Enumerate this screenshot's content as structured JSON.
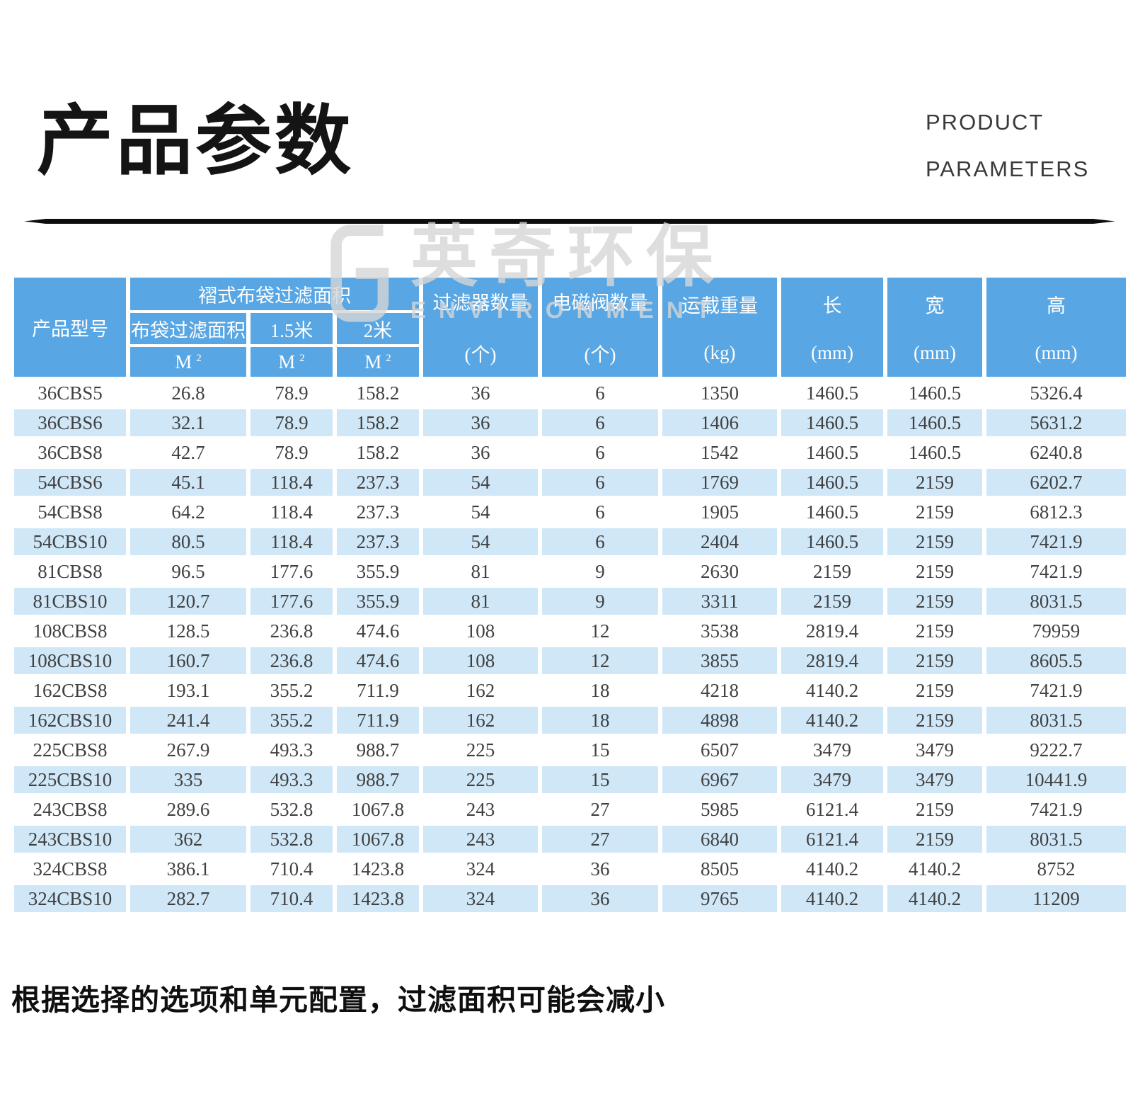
{
  "page": {
    "title": "产品参数",
    "subtitle_line1": "PRODUCT",
    "subtitle_line2": "PARAMETERS",
    "note": "根据选择的选项和单元配置，过滤面积可能会减小"
  },
  "watermark": {
    "cn": "英奇环保",
    "en": "ENVIRONMENT"
  },
  "colors": {
    "header_blue": "#58a6e3",
    "row_alt_blue": "#cfe7f7",
    "body_text": "#404040"
  },
  "table": {
    "headers": {
      "model": "产品型号",
      "pleated_group": "褶式布袋过滤面积",
      "bag_area": "布袋过滤面积",
      "len_1_5m": "1.5米",
      "len_2m": "2米",
      "unit_m": "M",
      "unit_sup": "2",
      "filter_count": "过滤器数量",
      "filter_count_unit": "(个)",
      "valve_count": "电磁阀数量",
      "valve_count_unit": "(个)",
      "weight": "运载重量",
      "weight_unit": "(kg)",
      "length": "长",
      "length_unit": "(mm)",
      "width": "宽",
      "width_unit": "(mm)",
      "height": "高",
      "height_unit": "(mm)"
    },
    "rows": [
      [
        "36CBS5",
        "26.8",
        "78.9",
        "158.2",
        "36",
        "6",
        "1350",
        "1460.5",
        "1460.5",
        "5326.4"
      ],
      [
        "36CBS6",
        "32.1",
        "78.9",
        "158.2",
        "36",
        "6",
        "1406",
        "1460.5",
        "1460.5",
        "5631.2"
      ],
      [
        "36CBS8",
        "42.7",
        "78.9",
        "158.2",
        "36",
        "6",
        "1542",
        "1460.5",
        "1460.5",
        "6240.8"
      ],
      [
        "54CBS6",
        "45.1",
        "118.4",
        "237.3",
        "54",
        "6",
        "1769",
        "1460.5",
        "2159",
        "6202.7"
      ],
      [
        "54CBS8",
        "64.2",
        "118.4",
        "237.3",
        "54",
        "6",
        "1905",
        "1460.5",
        "2159",
        "6812.3"
      ],
      [
        "54CBS10",
        "80.5",
        "118.4",
        "237.3",
        "54",
        "6",
        "2404",
        "1460.5",
        "2159",
        "7421.9"
      ],
      [
        "81CBS8",
        "96.5",
        "177.6",
        "355.9",
        "81",
        "9",
        "2630",
        "2159",
        "2159",
        "7421.9"
      ],
      [
        "81CBS10",
        "120.7",
        "177.6",
        "355.9",
        "81",
        "9",
        "3311",
        "2159",
        "2159",
        "8031.5"
      ],
      [
        "108CBS8",
        "128.5",
        "236.8",
        "474.6",
        "108",
        "12",
        "3538",
        "2819.4",
        "2159",
        "79959"
      ],
      [
        "108CBS10",
        "160.7",
        "236.8",
        "474.6",
        "108",
        "12",
        "3855",
        "2819.4",
        "2159",
        "8605.5"
      ],
      [
        "162CBS8",
        "193.1",
        "355.2",
        "711.9",
        "162",
        "18",
        "4218",
        "4140.2",
        "2159",
        "7421.9"
      ],
      [
        "162CBS10",
        "241.4",
        "355.2",
        "711.9",
        "162",
        "18",
        "4898",
        "4140.2",
        "2159",
        "8031.5"
      ],
      [
        "225CBS8",
        "267.9",
        "493.3",
        "988.7",
        "225",
        "15",
        "6507",
        "3479",
        "3479",
        "9222.7"
      ],
      [
        "225CBS10",
        "335",
        "493.3",
        "988.7",
        "225",
        "15",
        "6967",
        "3479",
        "3479",
        "10441.9"
      ],
      [
        "243CBS8",
        "289.6",
        "532.8",
        "1067.8",
        "243",
        "27",
        "5985",
        "6121.4",
        "2159",
        "7421.9"
      ],
      [
        "243CBS10",
        "362",
        "532.8",
        "1067.8",
        "243",
        "27",
        "6840",
        "6121.4",
        "2159",
        "8031.5"
      ],
      [
        "324CBS8",
        "386.1",
        "710.4",
        "1423.8",
        "324",
        "36",
        "8505",
        "4140.2",
        "4140.2",
        "8752"
      ],
      [
        "324CBS10",
        "282.7",
        "710.4",
        "1423.8",
        "324",
        "36",
        "9765",
        "4140.2",
        "4140.2",
        "11209"
      ]
    ]
  }
}
